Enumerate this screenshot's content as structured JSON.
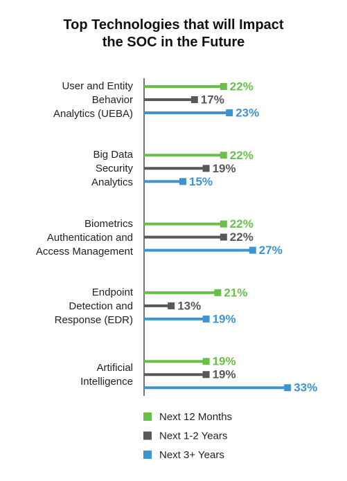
{
  "chart_data": {
    "type": "bar",
    "orientation": "horizontal",
    "title": "Top Technologies that will Impact\nthe SOC in the Future",
    "categories": [
      "User and Entity\nBehavior\nAnalytics (UEBA)",
      "Big Data\nSecurity\nAnalytics",
      "Biometrics\nAuthentication and\nAccess Management",
      "Endpoint\nDetection and\nResponse (EDR)",
      "Artificial\nIntelligence"
    ],
    "series": [
      {
        "name": "Next 12 Months",
        "color": "#6abf4b",
        "values": [
          22,
          22,
          22,
          21,
          19
        ],
        "value_labels": [
          "22%",
          "22%",
          "22%",
          "21%",
          "19%"
        ]
      },
      {
        "name": "Next 1-2 Years",
        "color": "#58585a",
        "values": [
          17,
          19,
          22,
          13,
          19
        ],
        "value_labels": [
          "17%",
          "19%",
          "22%",
          "13%",
          "19%"
        ]
      },
      {
        "name": "Next 3+ Years",
        "color": "#3d95d0",
        "values": [
          23,
          15,
          27,
          19,
          33
        ],
        "value_labels": [
          "23%",
          "15%",
          "27%",
          "19%",
          "33%"
        ]
      }
    ]
  }
}
